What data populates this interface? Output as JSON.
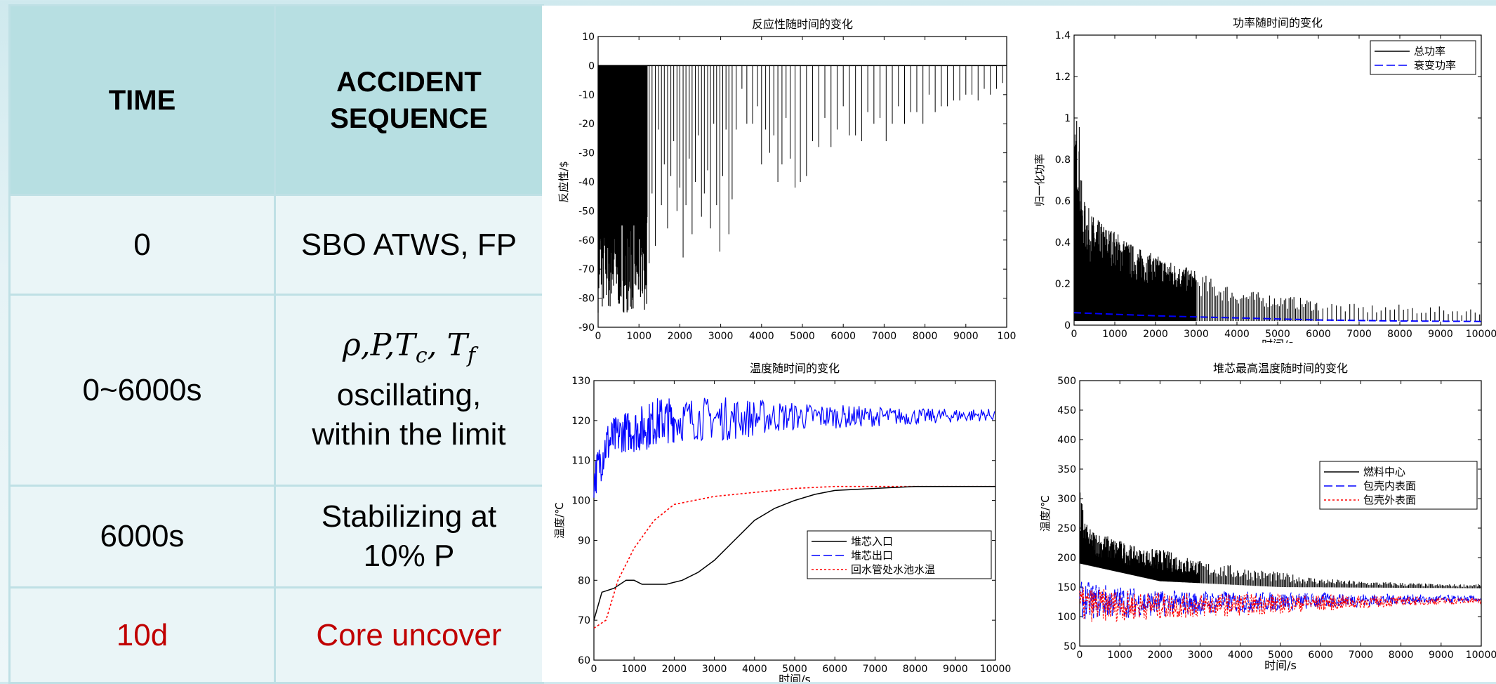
{
  "table": {
    "headers": [
      "TIME",
      "ACCIDENT SEQUENCE"
    ],
    "header_lines": [
      "ACCIDENT",
      "SEQUENCE"
    ],
    "rows": [
      {
        "time": "0",
        "event": "SBO ATWS, FP"
      },
      {
        "time": "0~6000s",
        "event_math": "ρ,P,T_c, T_f",
        "event_lines": [
          "oscillating,",
          "within the limit"
        ]
      },
      {
        "time": "6000s",
        "event_lines": [
          "Stabilizing at",
          "10% P"
        ]
      },
      {
        "time": "10d",
        "event": "Core uncover",
        "highlight_color": "#c00000"
      }
    ]
  },
  "chart_data": [
    {
      "type": "line",
      "title": "反应性随时间的变化",
      "ylabel": "反应性/$",
      "xlabel": "",
      "xlim": [
        0,
        10000
      ],
      "ylim": [
        -90,
        10
      ],
      "xticks": [
        "0",
        "1000",
        "2000",
        "3000",
        "4000",
        "5000",
        "6000",
        "7000",
        "8000",
        "9000",
        "100"
      ],
      "yticks": [
        "10",
        "0",
        "-10",
        "-20",
        "-30",
        "-40",
        "-50",
        "-60",
        "-70",
        "-80",
        "-90"
      ],
      "series": [
        {
          "color": "#000000",
          "baseline": 0,
          "dense_band": {
            "x_end": 1200,
            "min": -85
          },
          "spikes": [
            [
              1250,
              -68
            ],
            [
              1320,
              -44
            ],
            [
              1400,
              -62
            ],
            [
              1480,
              -22
            ],
            [
              1550,
              -48
            ],
            [
              1620,
              -34
            ],
            [
              1700,
              -56
            ],
            [
              1780,
              -38
            ],
            [
              1850,
              -26
            ],
            [
              1930,
              -50
            ],
            [
              2000,
              -42
            ],
            [
              2080,
              -66
            ],
            [
              2150,
              -48
            ],
            [
              2230,
              -32
            ],
            [
              2300,
              -58
            ],
            [
              2380,
              -40
            ],
            [
              2450,
              -24
            ],
            [
              2530,
              -52
            ],
            [
              2600,
              -44
            ],
            [
              2680,
              -36
            ],
            [
              2750,
              -56
            ],
            [
              2830,
              -20
            ],
            [
              2900,
              -48
            ],
            [
              2980,
              -64
            ],
            [
              3050,
              -38
            ],
            [
              3130,
              -22
            ],
            [
              3200,
              -58
            ],
            [
              3280,
              -46
            ],
            [
              3380,
              -22
            ],
            [
              3520,
              -8
            ],
            [
              3640,
              -20
            ],
            [
              3780,
              -20
            ],
            [
              3900,
              -14
            ],
            [
              4000,
              -34
            ],
            [
              4100,
              -22
            ],
            [
              4200,
              -30
            ],
            [
              4300,
              -24
            ],
            [
              4400,
              -40
            ],
            [
              4500,
              -34
            ],
            [
              4600,
              -18
            ],
            [
              4700,
              -32
            ],
            [
              4820,
              -42
            ],
            [
              4950,
              -40
            ],
            [
              5100,
              -38
            ],
            [
              5250,
              -26
            ],
            [
              5400,
              -28
            ],
            [
              5550,
              -18
            ],
            [
              5700,
              -28
            ],
            [
              5850,
              -22
            ],
            [
              6000,
              -14
            ],
            [
              6150,
              -24
            ],
            [
              6300,
              -24
            ],
            [
              6450,
              -26
            ],
            [
              6600,
              -16
            ],
            [
              6750,
              -20
            ],
            [
              6900,
              -18
            ],
            [
              7050,
              -26
            ],
            [
              7200,
              -20
            ],
            [
              7350,
              -14
            ],
            [
              7500,
              -20
            ],
            [
              7650,
              -16
            ],
            [
              7800,
              -16
            ],
            [
              7950,
              -20
            ],
            [
              8100,
              -10
            ],
            [
              8250,
              -16
            ],
            [
              8400,
              -14
            ],
            [
              8550,
              -14
            ],
            [
              8700,
              -12
            ],
            [
              8850,
              -12
            ],
            [
              9000,
              -10
            ],
            [
              9150,
              -10
            ],
            [
              9300,
              -12
            ],
            [
              9450,
              -8
            ],
            [
              9600,
              -10
            ],
            [
              9750,
              -8
            ],
            [
              9900,
              -6
            ]
          ]
        }
      ]
    },
    {
      "type": "line",
      "title": "功率随时间的变化",
      "xlabel": "时间/s",
      "ylabel": "归一化功率",
      "xlim": [
        0,
        10000
      ],
      "ylim": [
        0,
        1.4
      ],
      "xticks": [
        "0",
        "1000",
        "2000",
        "3000",
        "4000",
        "5000",
        "6000",
        "7000",
        "8000",
        "9000",
        "10000"
      ],
      "yticks": [
        "1.4",
        "1.2",
        "1",
        "0.8",
        "0.6",
        "0.4",
        "0.2",
        "0"
      ],
      "legend_position": "top-right",
      "series": [
        {
          "name": "总功率",
          "color": "#000000",
          "style": "solid",
          "envelope": [
            [
              0,
              0.88
            ],
            [
              100,
              1.12
            ],
            [
              200,
              0.62
            ],
            [
              500,
              0.52
            ],
            [
              1000,
              0.46
            ],
            [
              1500,
              0.38
            ],
            [
              2000,
              0.34
            ],
            [
              2500,
              0.3
            ],
            [
              3000,
              0.26
            ],
            [
              3500,
              0.22
            ],
            [
              4000,
              0.18
            ],
            [
              4500,
              0.16
            ],
            [
              5000,
              0.15
            ],
            [
              6000,
              0.12
            ],
            [
              7000,
              0.1
            ],
            [
              8000,
              0.1
            ],
            [
              9000,
              0.09
            ],
            [
              10000,
              0.08
            ]
          ]
        },
        {
          "name": "衰变功率",
          "color": "#0000ff",
          "style": "dashed",
          "points": [
            [
              0,
              0.06
            ],
            [
              2000,
              0.045
            ],
            [
              4000,
              0.035
            ],
            [
              6000,
              0.025
            ],
            [
              8000,
              0.02
            ],
            [
              10000,
              0.018
            ]
          ]
        }
      ]
    },
    {
      "type": "line",
      "title": "温度随时间的变化",
      "xlabel": "时间/s",
      "ylabel": "温度/℃",
      "xlim": [
        0,
        10000
      ],
      "ylim": [
        60,
        130
      ],
      "xticks": [
        "0",
        "1000",
        "2000",
        "3000",
        "4000",
        "5000",
        "6000",
        "7000",
        "8000",
        "9000",
        "10000"
      ],
      "yticks": [
        "130",
        "120",
        "110",
        "100",
        "90",
        "80",
        "70",
        "60"
      ],
      "legend_position": "bottom-right",
      "series": [
        {
          "name": "堆芯入口",
          "color": "#000000",
          "style": "solid",
          "points": [
            [
              0,
              70
            ],
            [
              200,
              77
            ],
            [
              500,
              78
            ],
            [
              800,
              80
            ],
            [
              1000,
              80
            ],
            [
              1200,
              79
            ],
            [
              1500,
              79
            ],
            [
              1800,
              79
            ],
            [
              2200,
              80
            ],
            [
              2600,
              82
            ],
            [
              3000,
              85
            ],
            [
              3500,
              90
            ],
            [
              4000,
              95
            ],
            [
              4500,
              98
            ],
            [
              5000,
              100
            ],
            [
              5500,
              101.5
            ],
            [
              6000,
              102.5
            ],
            [
              7000,
              103
            ],
            [
              8000,
              103.5
            ],
            [
              9000,
              103.5
            ],
            [
              10000,
              103.5
            ]
          ]
        },
        {
          "name": "堆芯出口",
          "color": "#0000ff",
          "style": "dashed",
          "band": [
            [
              0,
              100,
              110
            ],
            [
              300,
              108,
              120
            ],
            [
              700,
              112,
              122
            ],
            [
              1200,
              112,
              124
            ],
            [
              1600,
              114,
              126
            ],
            [
              2500,
              115,
              126
            ],
            [
              3500,
              115,
              126
            ],
            [
              4500,
              117,
              125
            ],
            [
              6000,
              118,
              124
            ],
            [
              8000,
              119,
              123
            ],
            [
              10000,
              120,
              123
            ]
          ]
        },
        {
          "name": "回水管处水池水温",
          "color": "#ff0000",
          "style": "dotted",
          "points": [
            [
              0,
              68
            ],
            [
              300,
              70
            ],
            [
              600,
              80
            ],
            [
              1000,
              88
            ],
            [
              1500,
              95
            ],
            [
              2000,
              99
            ],
            [
              2500,
              100
            ],
            [
              3000,
              101
            ],
            [
              4000,
              102
            ],
            [
              5000,
              103
            ],
            [
              6000,
              103.5
            ],
            [
              7000,
              103.5
            ],
            [
              8000,
              103.5
            ],
            [
              10000,
              103.5
            ]
          ]
        }
      ]
    },
    {
      "type": "line",
      "title": "堆芯最高温度随时间的变化",
      "xlabel": "时间/s",
      "ylabel": "温度/℃",
      "xlim": [
        0,
        10000
      ],
      "ylim": [
        50,
        500
      ],
      "xticks": [
        "0",
        "1000",
        "2000",
        "3000",
        "4000",
        "5000",
        "6000",
        "7000",
        "8000",
        "9000",
        "10000"
      ],
      "yticks": [
        "500",
        "450",
        "400",
        "350",
        "300",
        "250",
        "200",
        "150",
        "100",
        "50"
      ],
      "legend_position": "center-right",
      "series": [
        {
          "name": "燃料中心",
          "color": "#000000",
          "style": "solid",
          "envelope": [
            [
              0,
              315
            ],
            [
              200,
              250
            ],
            [
              600,
              240
            ],
            [
              1000,
              230
            ],
            [
              1500,
              215
            ],
            [
              2000,
              215
            ],
            [
              2500,
              205
            ],
            [
              3000,
              195
            ],
            [
              4000,
              185
            ],
            [
              5000,
              175
            ],
            [
              6000,
              165
            ],
            [
              7000,
              160
            ],
            [
              8000,
              158
            ],
            [
              9000,
              155
            ],
            [
              10000,
              155
            ]
          ],
          "floor": [
            [
              0,
              190
            ],
            [
              2000,
              160
            ],
            [
              5000,
              150
            ],
            [
              10000,
              148
            ]
          ]
        },
        {
          "name": "包壳内表面",
          "color": "#0000ff",
          "style": "dashed",
          "band": [
            [
              0,
              95,
              160
            ],
            [
              2000,
              100,
              145
            ],
            [
              5000,
              110,
              142
            ],
            [
              8000,
              120,
              138
            ],
            [
              10000,
              125,
              135
            ]
          ]
        },
        {
          "name": "包壳外表面",
          "color": "#ff0000",
          "style": "dotted",
          "band": [
            [
              0,
              90,
              150
            ],
            [
              2000,
              95,
              140
            ],
            [
              5000,
              105,
              138
            ],
            [
              8000,
              118,
              134
            ],
            [
              10000,
              122,
              132
            ]
          ]
        }
      ]
    }
  ]
}
